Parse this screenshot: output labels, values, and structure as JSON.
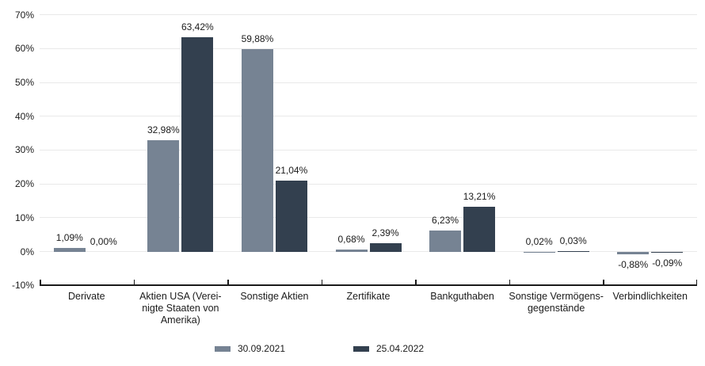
{
  "chart_data": {
    "type": "bar",
    "categories": [
      "Derivate",
      "Aktien USA (Verei-\nnigte Staaten von\nAmerika)",
      "Sonstige Aktien",
      "Zertifikate",
      "Bankguthaben",
      "Sonstige Vermögens-\ngegenstände",
      "Verbindlichkeiten"
    ],
    "series": [
      {
        "name": "30.09.2021",
        "color": "#768393",
        "values": [
          1.09,
          32.98,
          59.88,
          0.68,
          6.23,
          0.02,
          -0.88
        ],
        "labels": [
          "1,09%",
          "32,98%",
          "59,88%",
          "0,68%",
          "6,23%",
          "0,02%",
          "-0,88%"
        ]
      },
      {
        "name": "25.04.2022",
        "color": "#33404F",
        "values": [
          0.0,
          63.42,
          21.04,
          2.39,
          13.21,
          0.03,
          -0.09
        ],
        "labels": [
          "0,00%",
          "63,42%",
          "21,04%",
          "2,39%",
          "13,21%",
          "0,03%",
          "-0,09%"
        ]
      }
    ],
    "y_axis": {
      "min": -10,
      "max": 70,
      "step": 10,
      "tick_labels": [
        "70%",
        "60%",
        "50%",
        "40%",
        "30%",
        "20%",
        "10%",
        "0%",
        "-10%"
      ]
    },
    "grid": true,
    "legend_position": "bottom",
    "title": "",
    "xlabel": "",
    "ylabel": ""
  },
  "colors": {
    "background": "#ffffff",
    "gridline": "#e9e9e9",
    "axis": "#1b1b1b",
    "text": "#1b1b1b",
    "series_2021": "#768393",
    "series_2022": "#33404F"
  }
}
